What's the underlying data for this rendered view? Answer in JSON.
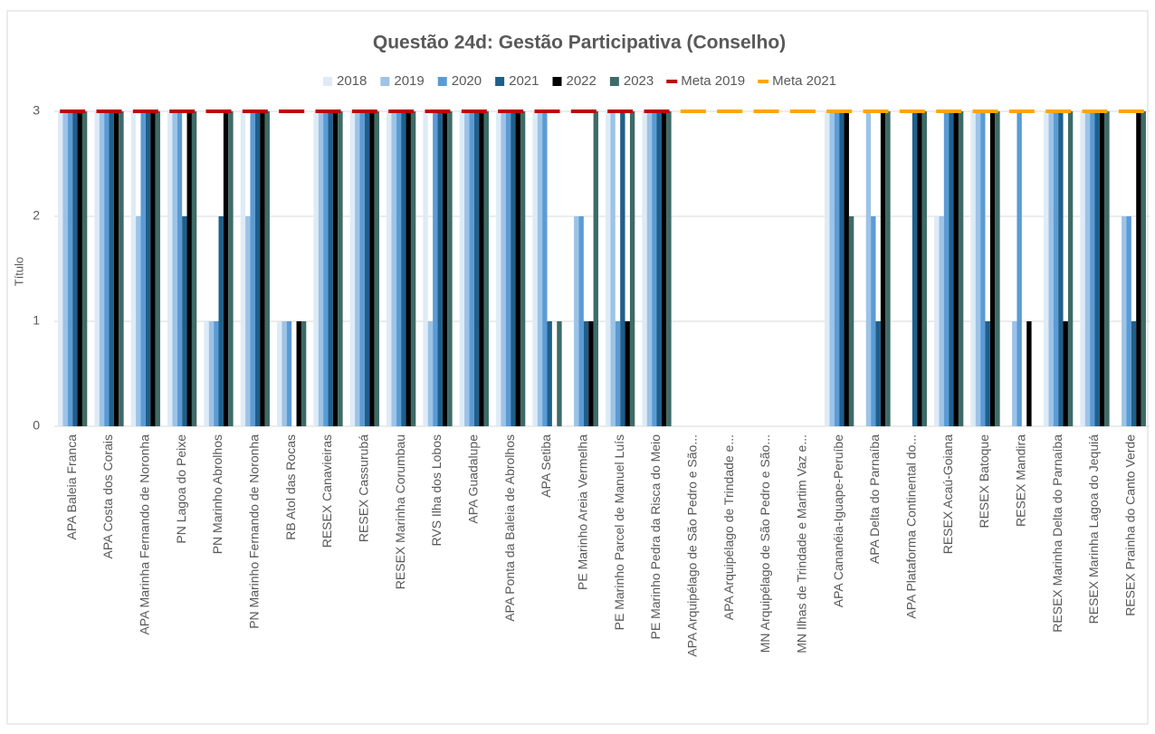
{
  "chart_data": {
    "type": "bar",
    "title": "Questão 24d: Gestão Participativa (Conselho)",
    "y_label": "Título",
    "categories": [
      "APA Baleia Franca",
      "APA Costa dos Corais",
      "APA Marinha Fernando de Noronha",
      "PN Lagoa do Peixe",
      "PN Marinho Abrolhos",
      "PN Marinho Fernando de Noronha",
      "RB Atol das Rocas",
      "RESEX Canavieiras",
      "RESEX Cassurubá",
      "RESEX Marinha Corumbau",
      "RVS Ilha dos Lobos",
      "APA Guadalupe",
      "APA Ponta da Baleia de Abrolhos",
      "APA Setiba",
      "PE Marinho Areia Vermelha",
      "PE Marinho Parcel de Manuel Luís",
      "PE Marinho Pedra da Risca do Meio",
      "APA Arquipélago de São Pedro e São...",
      "APA Arquipélago de Trindade e...",
      "MN Arquipélago de São Pedro e São...",
      "MN Ilhas de Trindade e Martim Vaz e...",
      "APA Cananéia-Iguape-Peruíbe",
      "APA Delta do Parnaíba",
      "APA Plataforma Continental do...",
      "RESEX Acaú-Goiana",
      "RESEX Batoque",
      "RESEX Mandira",
      "RESEX Marinha Delta do Parnaíba",
      "RESEX Marinha Lagoa do Jequiá",
      "RESEX Prainha do Canto Verde"
    ],
    "series": [
      {
        "name": "2018",
        "color": "#deebf7",
        "values": [
          3,
          3,
          3,
          3,
          1,
          3,
          1,
          3,
          3,
          3,
          3,
          3,
          3,
          3,
          null,
          3,
          3,
          null,
          null,
          null,
          null,
          3,
          null,
          null,
          2,
          3,
          null,
          3,
          3,
          null
        ]
      },
      {
        "name": "2019",
        "color": "#9dc3e6",
        "values": [
          3,
          3,
          2,
          3,
          1,
          2,
          1,
          3,
          3,
          3,
          1,
          3,
          3,
          3,
          2,
          3,
          3,
          null,
          null,
          null,
          null,
          3,
          3,
          null,
          2,
          3,
          1,
          3,
          3,
          2
        ]
      },
      {
        "name": "2020",
        "color": "#5b9bd5",
        "values": [
          3,
          3,
          3,
          3,
          1,
          3,
          1,
          3,
          3,
          3,
          3,
          3,
          3,
          3,
          2,
          1,
          3,
          null,
          null,
          null,
          null,
          3,
          2,
          null,
          3,
          3,
          3,
          3,
          3,
          2
        ]
      },
      {
        "name": "2021",
        "color": "#1f5f8b",
        "values": [
          3,
          3,
          3,
          2,
          2,
          3,
          null,
          3,
          3,
          3,
          3,
          3,
          3,
          1,
          1,
          3,
          3,
          null,
          null,
          null,
          null,
          3,
          1,
          3,
          3,
          1,
          null,
          3,
          3,
          1
        ]
      },
      {
        "name": "2022",
        "color": "#000000",
        "values": [
          3,
          3,
          3,
          3,
          3,
          3,
          1,
          3,
          3,
          3,
          3,
          3,
          3,
          null,
          1,
          1,
          3,
          null,
          null,
          null,
          null,
          3,
          3,
          3,
          3,
          3,
          1,
          1,
          3,
          3
        ]
      },
      {
        "name": "2023",
        "color": "#3e6b67",
        "values": [
          3,
          3,
          3,
          3,
          3,
          3,
          1,
          3,
          3,
          3,
          3,
          3,
          3,
          1,
          3,
          3,
          3,
          null,
          null,
          null,
          null,
          2,
          3,
          3,
          3,
          3,
          null,
          3,
          3,
          3
        ]
      },
      {
        "name": "Meta 2019",
        "color": "#c00000",
        "mark": "dash",
        "values": [
          3,
          3,
          3,
          3,
          3,
          3,
          3,
          3,
          3,
          3,
          3,
          3,
          3,
          3,
          3,
          3,
          3,
          null,
          null,
          null,
          null,
          null,
          null,
          null,
          null,
          null,
          null,
          null,
          null,
          null
        ]
      },
      {
        "name": "Meta 2021",
        "color": "#ffa500",
        "mark": "dash",
        "values": [
          null,
          null,
          null,
          null,
          null,
          null,
          null,
          null,
          null,
          null,
          null,
          null,
          null,
          null,
          null,
          null,
          null,
          3,
          3,
          3,
          3,
          3,
          3,
          3,
          3,
          3,
          3,
          3,
          3,
          3
        ]
      }
    ],
    "ylim": [
      0,
      3
    ],
    "yticks": [
      0,
      1,
      2,
      3
    ],
    "grid": true
  }
}
